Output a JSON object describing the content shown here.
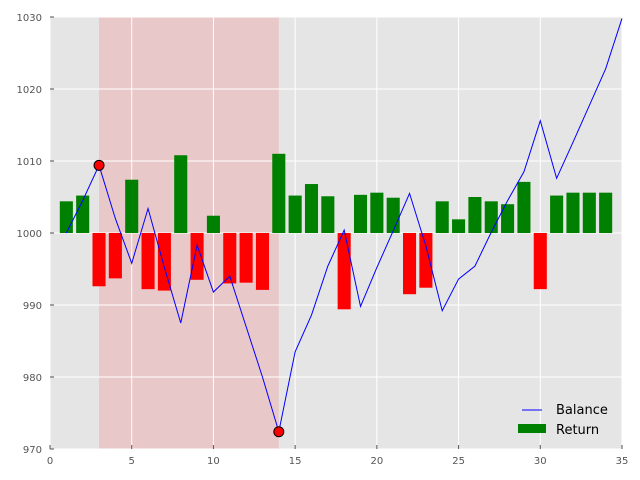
{
  "chart_data": {
    "type": "bar+line",
    "title": "",
    "xlabel": "",
    "ylabel": "",
    "xlim": [
      0,
      35
    ],
    "ylim": [
      970,
      1030
    ],
    "xticks": [
      0,
      5,
      10,
      15,
      20,
      25,
      30,
      35
    ],
    "yticks": [
      970,
      980,
      990,
      1000,
      1010,
      1020,
      1030
    ],
    "grid": true,
    "legend_position": "bottom-right",
    "drawdown_span": {
      "x_start": 3,
      "x_end": 14,
      "color": "#e8c8c8"
    },
    "markers": [
      {
        "x": 3,
        "y": 1009.4,
        "color": "#ff0000"
      },
      {
        "x": 14,
        "y": 972.4,
        "color": "#ff0000"
      }
    ],
    "series": [
      {
        "name": "Balance",
        "type": "line",
        "color": "#0000ff",
        "x": [
          1,
          2,
          3,
          4,
          5,
          6,
          7,
          8,
          9,
          10,
          11,
          12,
          13,
          14,
          15,
          16,
          17,
          18,
          19,
          20,
          21,
          22,
          23,
          24,
          25,
          26,
          27,
          28,
          29,
          30,
          31,
          32,
          33,
          34,
          35
        ],
        "y": [
          1000,
          1004.5,
          1009.4,
          1002,
          995.8,
          1003.4,
          995.2,
          987.5,
          998.3,
          991.8,
          994,
          987,
          980,
          972.4,
          983.5,
          988.6,
          995.4,
          1000.4,
          989.8,
          995.2,
          1000.3,
          1005.5,
          998.2,
          989.2,
          993.6,
          995.4,
          1000.1,
          1004.5,
          1008.5,
          1015.6,
          1007.6,
          1012.6,
          1017.7,
          1022.8,
          1029.8
        ]
      },
      {
        "name": "Return",
        "type": "bar",
        "positive_color": "#008000",
        "negative_color": "#ff0000",
        "x": [
          1,
          2,
          3,
          4,
          5,
          6,
          7,
          8,
          9,
          10,
          11,
          12,
          13,
          14,
          15,
          16,
          17,
          18,
          19,
          20,
          21,
          22,
          23,
          24,
          25,
          26,
          27,
          28,
          29,
          30,
          31,
          32,
          33,
          34,
          35
        ],
        "values": [
          4.4,
          5.2,
          -7.4,
          -6.3,
          7.4,
          -7.8,
          -8,
          10.8,
          -6.5,
          2.4,
          -7,
          -6.9,
          -7.9,
          11,
          5.2,
          6.8,
          5.1,
          -10.6,
          5.3,
          5.6,
          4.9,
          -8.5,
          -7.6,
          4.4,
          1.9,
          5,
          4.4,
          4,
          7.1,
          -7.8,
          5.2,
          5.6,
          5.6,
          5.6,
          0
        ]
      }
    ]
  },
  "legend": {
    "balance_label": "Balance",
    "return_label": "Return"
  },
  "colors": {
    "plot_background": "#e5e5e5",
    "grid": "#ffffff",
    "axis_frame": "#ffffff",
    "tick_text": "#555555"
  }
}
